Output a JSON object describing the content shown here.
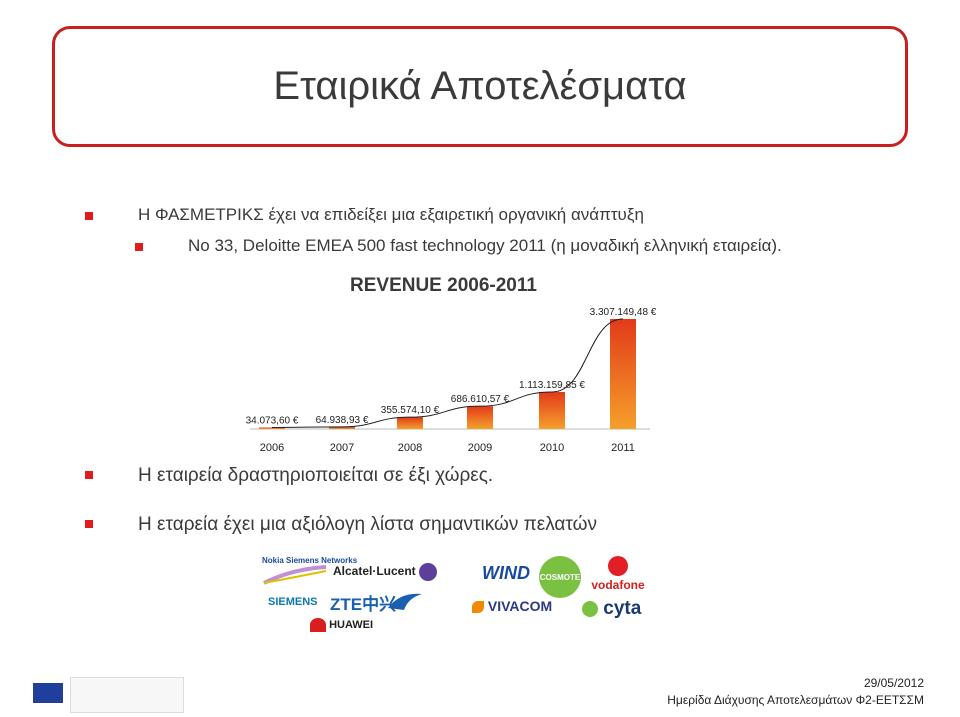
{
  "slide": {
    "title": "Εταιρικά Αποτελέσματα",
    "bullets": [
      "Η ΦΑΣΜΕΤΡΙΚΣ έχει να επιδείξει μια εξαιρετική οργανική ανάπτυξη",
      "Νο 33, Deloitte EMEA 500 fast technology 2011 (η μοναδική ελληνική εταιρεία).",
      "Η εταιρεία δραστηριοποιείται σε έξι χώρες.",
      "Η εταρεία έχει μια αξιόλογη λίστα σημαντικών πελατών"
    ]
  },
  "chart_data": {
    "type": "bar",
    "title": "REVENUE 2006-2011",
    "categories": [
      "2006",
      "2007",
      "2008",
      "2009",
      "2010",
      "2011"
    ],
    "values": [
      34073.6,
      64938.93,
      355574.1,
      686610.57,
      1113159.85,
      3307149.48
    ],
    "value_labels": [
      "34.073,60 €",
      "64.938,93 €",
      "355.574,10 €",
      "686.610,57 €",
      "1.113.159,85 €",
      "3.307.149,48 €"
    ],
    "trendline": true,
    "grid": false,
    "bar_color_top": "#e23a1a",
    "bar_color_bottom": "#f5a02a"
  },
  "logos": {
    "nsn": "Nokia Siemens Networks",
    "alcatel": "Alcatel·Lucent",
    "siemens": "SIEMENS",
    "zte": "ZTE中兴",
    "huawei": "HUAWEI",
    "wind": "WIND",
    "cosmote": "COSMOTE",
    "vodafone": "vodafone",
    "vivacom": "VIVACOM",
    "cyta": "cyta"
  },
  "footer": {
    "date": "29/05/2012",
    "event": "Ημερίδα Διάχυσης Αποτελεσμάτων Φ2-ΕΕΤΣΣΜ"
  },
  "colors": {
    "accent": "#c8201f",
    "bullet": "#e01b1b",
    "text": "#3a3a3a"
  }
}
